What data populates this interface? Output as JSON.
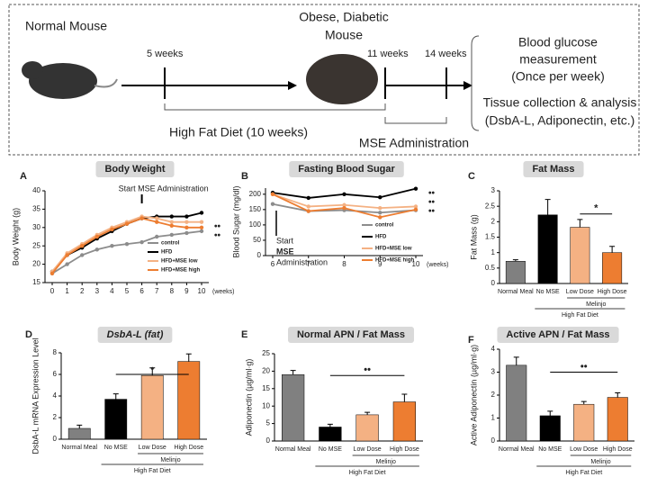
{
  "diagram": {
    "normal_mouse": "Normal Mouse",
    "obese_mouse": [
      "Obese, Diabetic",
      "Mouse"
    ],
    "time_labels": [
      "5 weeks",
      "11 weeks",
      "14 weeks"
    ],
    "hfd_label": "High Fat Diet (10 weeks)",
    "mse_label": "MSE Administration",
    "glucose": [
      "Blood glucose",
      "measurement",
      "(Once per week)"
    ],
    "tissue": [
      "Tissue collection & analysis",
      "(DsbA-L, Adiponectin, etc.)"
    ]
  },
  "chart_data": [
    {
      "type": "line",
      "letter": "A",
      "title": "Body Weight",
      "ylabel": "Body Weight (g)",
      "x": [
        0,
        1,
        2,
        3,
        4,
        5,
        6,
        7,
        8,
        9,
        10
      ],
      "xlim": [
        0,
        10
      ],
      "xticks": [
        0,
        1,
        2,
        3,
        4,
        5,
        6,
        7,
        8,
        9,
        10
      ],
      "xunit": "(weeks)",
      "ylim": [
        15,
        40
      ],
      "yticks": [
        15,
        20,
        25,
        30,
        35,
        40
      ],
      "legend": "lower right",
      "series": [
        {
          "name": "control",
          "color": "#8c8c8c",
          "values": [
            17.5,
            20,
            22.5,
            24,
            25,
            25.5,
            26,
            27.5,
            28,
            28.5,
            29
          ]
        },
        {
          "name": "HFD",
          "color": "#000000",
          "values": [
            18,
            22.5,
            24.5,
            27,
            29,
            31,
            32.5,
            33,
            33,
            33,
            34
          ]
        },
        {
          "name": "HFD+MSE low",
          "color": "#f4b183",
          "values": [
            18,
            23,
            25.5,
            28,
            30,
            31.5,
            33,
            32.5,
            31.5,
            31.5,
            31.5
          ]
        },
        {
          "name": "HFD+MSE high",
          "color": "#ed7d31",
          "values": [
            17.5,
            22.5,
            25,
            27.5,
            29.5,
            31,
            32.5,
            31.5,
            30.5,
            30,
            30
          ]
        }
      ],
      "annotation": [
        "Start MSE Administration"
      ],
      "significance": [
        "••",
        "••"
      ]
    },
    {
      "type": "line",
      "letter": "B",
      "title": "Fasting Blood Sugar",
      "ylabel": "Blood Sugar (mg/dl)",
      "x": [
        6,
        7,
        8,
        9,
        10
      ],
      "xlim": [
        6,
        10
      ],
      "xticks": [
        6,
        7,
        8,
        9,
        10
      ],
      "xunit": "(weeks)",
      "ylim": [
        0,
        220
      ],
      "yticks": [
        0,
        50,
        100,
        150,
        200
      ],
      "legend": "lower right",
      "series": [
        {
          "name": "control",
          "color": "#8c8c8c",
          "values": [
            168,
            145,
            148,
            140,
            148
          ]
        },
        {
          "name": "HFD",
          "color": "#000000",
          "values": [
            205,
            188,
            200,
            190,
            218
          ]
        },
        {
          "name": "HFD+MSE low",
          "color": "#f4b183",
          "values": [
            200,
            160,
            165,
            155,
            160
          ]
        },
        {
          "name": "HFD+MSE high",
          "color": "#ed7d31",
          "values": [
            200,
            145,
            155,
            125,
            150
          ]
        }
      ],
      "annotation": [
        "Start",
        "MSE",
        "Administration"
      ],
      "significance": [
        "••",
        "••",
        "••"
      ]
    },
    {
      "type": "bar",
      "letter": "C",
      "title": "Fat Mass",
      "ylabel": "Fat Mass (g)",
      "categories": [
        "Normal Meal",
        "No MSE",
        "Low Dose",
        "High Dose"
      ],
      "values": [
        0.72,
        2.22,
        1.82,
        1.0
      ],
      "errors": [
        0.05,
        0.5,
        0.25,
        0.2
      ],
      "colors": [
        "#808080",
        "#000000",
        "#f4b183",
        "#ed7d31"
      ],
      "ylim": [
        0,
        3
      ],
      "yticks": [
        0,
        0.5,
        1,
        1.5,
        2,
        2.5,
        3
      ],
      "group_labels": [
        "High Fat Diet",
        "Melinjo"
      ],
      "significance": "*"
    },
    {
      "type": "bar",
      "letter": "D",
      "title": "DsbA-L (fat)",
      "ylabel": "DsbA-L mRNA Expression Level",
      "categories": [
        "Normal Meal",
        "No MSE",
        "Low Dose",
        "High Dose"
      ],
      "values": [
        1.0,
        3.7,
        5.9,
        7.2
      ],
      "errors": [
        0.3,
        0.5,
        0.7,
        0.7
      ],
      "colors": [
        "#808080",
        "#000000",
        "#f4b183",
        "#ed7d31"
      ],
      "ylim": [
        0,
        8
      ],
      "yticks": [
        0,
        2,
        4,
        6,
        8
      ],
      "group_labels": [
        "High Fat Diet",
        "Melinjo"
      ],
      "significance": "•"
    },
    {
      "type": "bar",
      "letter": "E",
      "title": "Normal APN / Fat Mass",
      "ylabel": "Adiponectin (µg/ml·g)",
      "categories": [
        "Normal Meal",
        "No MSE",
        "Low Dose",
        "High Dose"
      ],
      "values": [
        19,
        4,
        7.5,
        11.2
      ],
      "errors": [
        1.2,
        0.8,
        0.7,
        2.2
      ],
      "colors": [
        "#808080",
        "#000000",
        "#f4b183",
        "#ed7d31"
      ],
      "ylim": [
        0,
        25
      ],
      "yticks": [
        0,
        5,
        10,
        15,
        20,
        25
      ],
      "group_labels": [
        "High Fat Diet",
        "Melinjo"
      ],
      "significance": "••"
    },
    {
      "type": "bar",
      "letter": "F",
      "title": "Active APN / Fat Mass",
      "ylabel": "Active Adiponectin (µg/ml·g)",
      "categories": [
        "Normal Meal",
        "No MSE",
        "Low Dose",
        "High Dose"
      ],
      "values": [
        3.3,
        1.1,
        1.6,
        1.9
      ],
      "errors": [
        0.35,
        0.2,
        0.12,
        0.2
      ],
      "colors": [
        "#808080",
        "#000000",
        "#f4b183",
        "#ed7d31"
      ],
      "ylim": [
        0,
        4
      ],
      "yticks": [
        0,
        1,
        2,
        3,
        4
      ],
      "group_labels": [
        "High Fat Diet",
        "Melinjo"
      ],
      "significance": "••"
    }
  ]
}
